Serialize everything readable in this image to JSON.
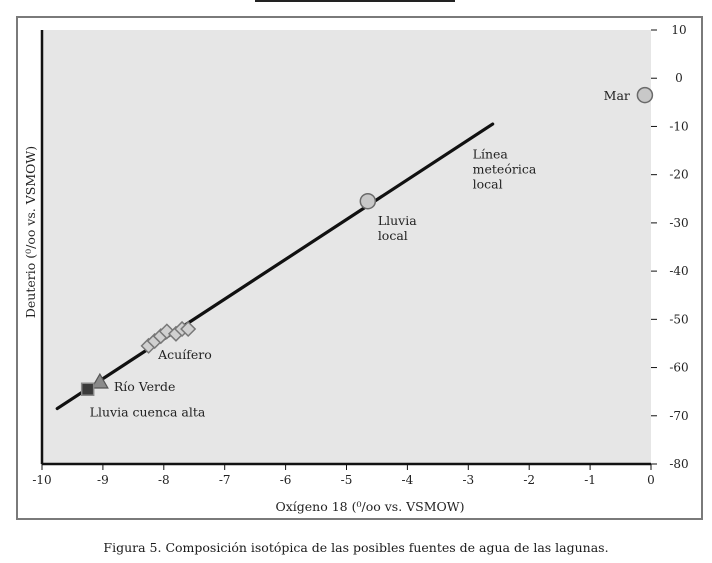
{
  "caption": "Figura 5. Composición isotópica de las posibles fuentes de agua de las lagunas.",
  "chart_data": {
    "type": "scatter",
    "xlabel": "Oxígeno 18 (⁰/oo vs. VSMOW)",
    "ylabel": "Deuterio (⁰/oo vs. VSMOW)",
    "xlim": [
      -10,
      0
    ],
    "ylim": [
      -80,
      10
    ],
    "x_ticks": [
      -10,
      -9,
      -8,
      -7,
      -6,
      -5,
      -4,
      -3,
      -2,
      -1,
      0
    ],
    "y_ticks": [
      10,
      0,
      -10,
      -20,
      -30,
      -40,
      -50,
      -60,
      -70,
      -80
    ],
    "y_axis_side": "right",
    "grid": false,
    "background": "#e6e6e6",
    "line": {
      "name": "Línea meteórica local",
      "points": [
        [
          -9.75,
          -68.5
        ],
        [
          -2.6,
          -9.5
        ]
      ],
      "color": "#111111"
    },
    "series": [
      {
        "name": "Mar",
        "marker": "circle",
        "color": "#c8c8c8",
        "points": [
          [
            -0.1,
            -3.5
          ]
        ]
      },
      {
        "name": "Lluvia local",
        "marker": "circle",
        "color": "#c8c8c8",
        "points": [
          [
            -4.65,
            -25.5
          ]
        ]
      },
      {
        "name": "Acuífero",
        "marker": "diamond",
        "color": "#d0d0d0",
        "points": [
          [
            -8.25,
            -55.5
          ],
          [
            -8.15,
            -54.5
          ],
          [
            -8.05,
            -53.5
          ],
          [
            -7.95,
            -52.5
          ],
          [
            -7.8,
            -53.0
          ],
          [
            -7.7,
            -52.0
          ],
          [
            -7.6,
            -52.0
          ]
        ]
      },
      {
        "name": "Río Verde",
        "marker": "triangle",
        "color": "#8a8a8a",
        "points": [
          [
            -9.05,
            -63.0
          ]
        ]
      },
      {
        "name": "Lluvia cuenca alta",
        "marker": "square",
        "color": "#3a3a3a",
        "points": [
          [
            -9.25,
            -64.5
          ]
        ]
      }
    ],
    "annotations": [
      {
        "label_id": "mar",
        "lines": [
          "Mar"
        ],
        "at": [
          -0.1,
          -3.5
        ],
        "anchor": "left-of-point"
      },
      {
        "label_id": "linea",
        "lines": [
          "Línea",
          "meteórica",
          "local"
        ],
        "at": [
          -2.6,
          -12.5
        ],
        "anchor": "below-right"
      },
      {
        "label_id": "lluvia-local",
        "lines": [
          "Lluvia",
          "local"
        ],
        "at": [
          -4.65,
          -25.5
        ],
        "anchor": "below"
      },
      {
        "label_id": "acuifero",
        "lines": [
          "Acuífero"
        ],
        "at": [
          -7.6,
          -52.0
        ],
        "anchor": "below"
      },
      {
        "label_id": "rio-verde",
        "lines": [
          "Río Verde"
        ],
        "at": [
          -9.05,
          -63.0
        ],
        "anchor": "right"
      },
      {
        "label_id": "lluvia-cuenca-alta",
        "lines": [
          "Lluvia cuenca alta"
        ],
        "at": [
          -9.25,
          -64.5
        ],
        "anchor": "below"
      }
    ]
  }
}
